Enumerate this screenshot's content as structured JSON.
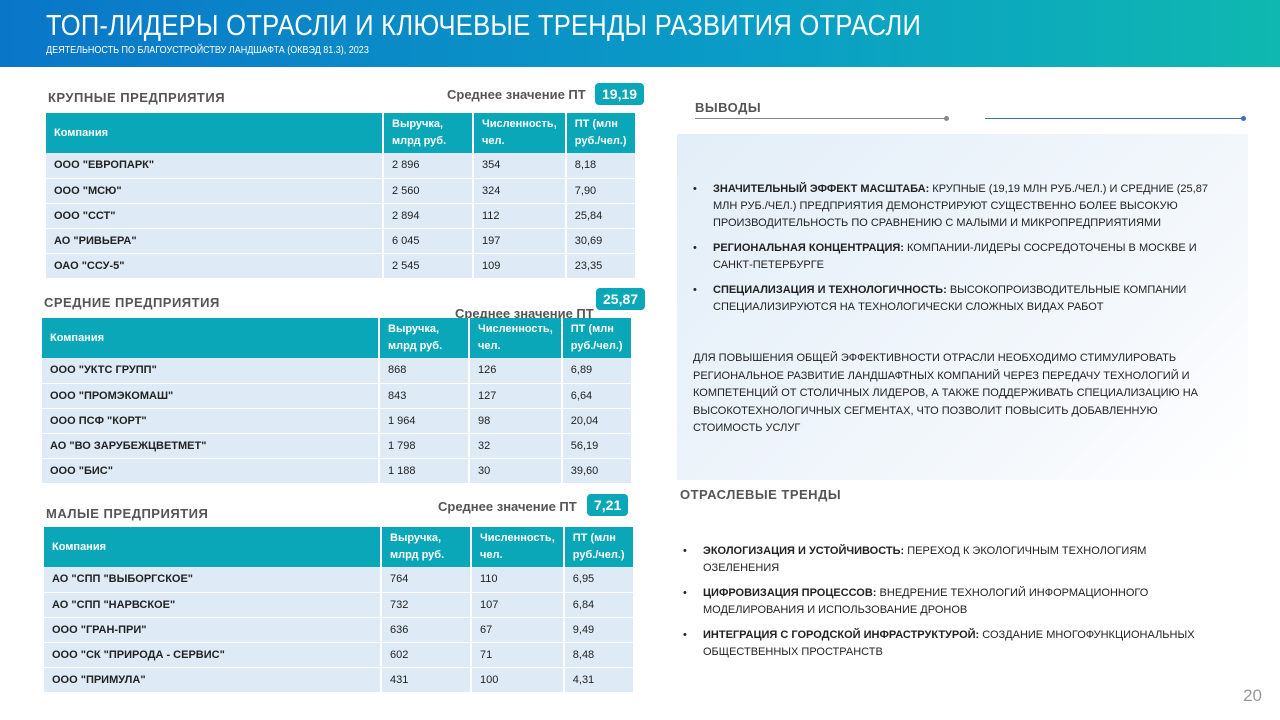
{
  "header": {
    "title": "ТОП-ЛИДЕРЫ ОТРАСЛИ И КЛЮЧЕВЫЕ ТРЕНДЫ РАЗВИТИЯ ОТРАСЛИ",
    "subtitle": "ДЕЯТЕЛЬНОСТЬ ПО БЛАГОУСТРОЙСТВУ ЛАНДШАФТА (ОКВЭД 81.3), 2023"
  },
  "columns": [
    "Компания",
    "Выручка, млрд руб.",
    "Численность, чел.",
    "ПТ (млн руб./чел.)"
  ],
  "avg_label": "Среднее значение ПТ",
  "large": {
    "title": "КРУПНЫЕ ПРЕДПРИЯТИЯ",
    "avg": "19,19",
    "rows": [
      [
        "ООО \"ЕВРОПАРК\"",
        "2 896",
        "354",
        "8,18"
      ],
      [
        "ООО \"МСЮ\"",
        "2 560",
        "324",
        "7,90"
      ],
      [
        "ООО \"ССТ\"",
        "2 894",
        "112",
        "25,84"
      ],
      [
        "АО \"РИВЬЕРА\"",
        "6 045",
        "197",
        "30,69"
      ],
      [
        "ОАО \"ССУ-5\"",
        "2 545",
        "109",
        "23,35"
      ]
    ]
  },
  "medium": {
    "title": "СРЕДНИЕ ПРЕДПРИЯТИЯ",
    "avg": "25,87",
    "rows": [
      [
        "ООО \"УКТС ГРУПП\"",
        "868",
        "126",
        "6,89"
      ],
      [
        "ООО \"ПРОМЭКОМАШ\"",
        "843",
        "127",
        "6,64"
      ],
      [
        "ООО ПСФ \"КОРТ\"",
        "1 964",
        "98",
        "20,04"
      ],
      [
        "АО \"ВО ЗАРУБЕЖЦВЕТМЕТ\"",
        "1 798",
        "32",
        "56,19"
      ],
      [
        "ООО \"БИС\"",
        "1 188",
        "30",
        "39,60"
      ]
    ]
  },
  "small": {
    "title": "МАЛЫЕ ПРЕДПРИЯТИЯ",
    "avg": "7,21",
    "rows": [
      [
        "АО \"СПП \"ВЫБОРГСКОЕ\"",
        "764",
        "110",
        "6,95"
      ],
      [
        "АО \"СПП \"НАРВСКОЕ\"",
        "732",
        "107",
        "6,84"
      ],
      [
        "ООО \"ГРАН-ПРИ\"",
        "636",
        "67",
        "9,49"
      ],
      [
        "ООО \"СК \"ПРИРОДА - СЕРВИС\"",
        "602",
        "71",
        "8,48"
      ],
      [
        "ООО \"ПРИМУЛА\"",
        "431",
        "100",
        "4,31"
      ]
    ]
  },
  "conclusions": {
    "title": "ВЫВОДЫ",
    "items": [
      {
        "bold": "ЗНАЧИТЕЛЬНЫЙ ЭФФЕКТ МАСШТАБА:",
        "text": " КРУПНЫЕ (19,19 МЛН РУБ./ЧЕЛ.) И СРЕДНИЕ (25,87 МЛН РУБ./ЧЕЛ.) ПРЕДПРИЯТИЯ ДЕМОНСТРИРУЮТ СУЩЕСТВЕННО БОЛЕЕ ВЫСОКУЮ ПРОИЗВОДИТЕЛЬНОСТЬ ПО СРАВНЕНИЮ С МАЛЫМИ И МИКРОПРЕДПРИЯТИЯМИ"
      },
      {
        "bold": "РЕГИОНАЛЬНАЯ КОНЦЕНТРАЦИЯ:",
        "text": " КОМПАНИИ-ЛИДЕРЫ СОСРЕДОТОЧЕНЫ В МОСКВЕ И САНКТ-ПЕТЕРБУРГЕ"
      },
      {
        "bold": "СПЕЦИАЛИЗАЦИЯ И ТЕХНОЛОГИЧНОСТЬ:",
        "text": " ВЫСОКОПРОИЗВОДИТЕЛЬНЫЕ КОМПАНИИ СПЕЦИАЛИЗИРУЮТСЯ НА ТЕХНОЛОГИЧЕСКИ СЛОЖНЫХ ВИДАХ РАБОТ"
      }
    ],
    "summary": "ДЛЯ ПОВЫШЕНИЯ ОБЩЕЙ ЭФФЕКТИВНОСТИ ОТРАСЛИ НЕОБХОДИМО СТИМУЛИРОВАТЬ РЕГИОНАЛЬНОЕ РАЗВИТИЕ ЛАНДШАФТНЫХ КОМПАНИЙ ЧЕРЕЗ ПЕРЕДАЧУ ТЕХНОЛОГИЙ И КОМПЕТЕНЦИЙ ОТ СТОЛИЧНЫХ ЛИДЕРОВ, А ТАКЖЕ ПОДДЕРЖИВАТЬ СПЕЦИАЛИЗАЦИЮ НА ВЫСОКОТЕХНОЛОГИЧНЫХ СЕГМЕНТАХ, ЧТО ПОЗВОЛИТ ПОВЫСИТЬ ДОБАВЛЕННУЮ СТОИМОСТЬ УСЛУГ"
  },
  "trends": {
    "title": "ОТРАСЛЕВЫЕ ТРЕНДЫ",
    "items": [
      {
        "bold": "ЭКОЛОГИЗАЦИЯ И УСТОЙЧИВОСТЬ:",
        "text": " ПЕРЕХОД К ЭКОЛОГИЧНЫМ ТЕХНОЛОГИЯМ ОЗЕЛЕНЕНИЯ"
      },
      {
        "bold": "ЦИФРОВИЗАЦИЯ ПРОЦЕССОВ:",
        "text": " ВНЕДРЕНИЕ ТЕХНОЛОГИЙ ИНФОРМАЦИОННОГО МОДЕЛИРОВАНИЯ И ИСПОЛЬЗОВАНИЕ ДРОНОВ"
      },
      {
        "bold": "ИНТЕГРАЦИЯ С ГОРОДСКОЙ ИНФРАСТРУКТУРОЙ:",
        "text": " СОЗДАНИЕ МНОГОФУНКЦИОНАЛЬНЫХ ОБЩЕСТВЕННЫХ ПРОСТРАНСТВ"
      }
    ]
  },
  "page_number": "20",
  "colors": {
    "accent": "#0aa7b8",
    "row": "#deebf6",
    "header_start": "#0a76c8",
    "header_end": "#0fb8b0"
  }
}
